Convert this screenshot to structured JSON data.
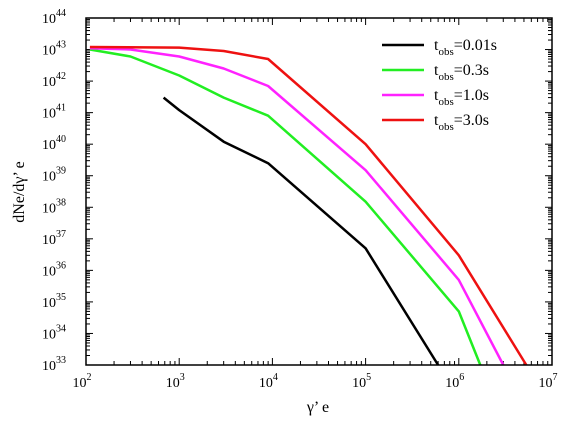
{
  "chart_data": {
    "type": "line",
    "xlabel": "γ’ e",
    "ylabel": "dNe/dγ’ e",
    "xscale": "log",
    "yscale": "log",
    "xlim": [
      100,
      10000000
    ],
    "ylim": [
      1e+33,
      1e+44
    ],
    "x_ticks": [
      {
        "base": "10",
        "exp": "2",
        "value": 100
      },
      {
        "base": "10",
        "exp": "3",
        "value": 1000
      },
      {
        "base": "10",
        "exp": "4",
        "value": 10000
      },
      {
        "base": "10",
        "exp": "5",
        "value": 100000
      },
      {
        "base": "10",
        "exp": "6",
        "value": 1000000
      },
      {
        "base": "10",
        "exp": "7",
        "value": 10000000
      }
    ],
    "y_ticks": [
      {
        "base": "10",
        "exp": "33",
        "value": 1e+33
      },
      {
        "base": "10",
        "exp": "34",
        "value": 1e+34
      },
      {
        "base": "10",
        "exp": "35",
        "value": 1e+35
      },
      {
        "base": "10",
        "exp": "36",
        "value": 1e+36
      },
      {
        "base": "10",
        "exp": "37",
        "value": 1e+37
      },
      {
        "base": "10",
        "exp": "38",
        "value": 1e+38
      },
      {
        "base": "10",
        "exp": "39",
        "value": 1e+39
      },
      {
        "base": "10",
        "exp": "40",
        "value": 1e+40
      },
      {
        "base": "10",
        "exp": "41",
        "value": 1e+41
      },
      {
        "base": "10",
        "exp": "42",
        "value": 1e+42
      },
      {
        "base": "10",
        "exp": "43",
        "value": 1e+43
      },
      {
        "base": "10",
        "exp": "44",
        "value": 1e+44
      }
    ],
    "legend_position": "top-right",
    "grid": false,
    "series": [
      {
        "name": "tobs=0.01s",
        "legend_main": "t",
        "legend_sub": "obs",
        "legend_rest": "=0.01s",
        "color": "#000000",
        "points": [
          [
            680,
            3e+41
          ],
          [
            1000,
            1.2e+41
          ],
          [
            3000,
            1.2e+40
          ],
          [
            9000,
            2.5e+39
          ],
          [
            100000,
            5e+36
          ],
          [
            600000,
            1e+33
          ]
        ]
      },
      {
        "name": "tobs=0.3s",
        "legend_main": "t",
        "legend_sub": "obs",
        "legend_rest": "=0.3s",
        "color": "#22ee22",
        "points": [
          [
            110,
            1e+43
          ],
          [
            300,
            6e+42
          ],
          [
            1000,
            1.5e+42
          ],
          [
            3000,
            3e+41
          ],
          [
            9000,
            8e+40
          ],
          [
            100000,
            1.5e+38
          ],
          [
            1000000,
            5e+34
          ],
          [
            1700000,
            1e+33
          ]
        ]
      },
      {
        "name": "tobs=1.0s",
        "legend_main": "t",
        "legend_sub": "obs",
        "legend_rest": "=1.0s",
        "color": "#ff22ff",
        "points": [
          [
            110,
            1.1e+43
          ],
          [
            300,
            1e+43
          ],
          [
            1000,
            6e+42
          ],
          [
            3000,
            2.5e+42
          ],
          [
            9000,
            7e+41
          ],
          [
            100000,
            1.5e+39
          ],
          [
            1000000,
            5e+35
          ],
          [
            3000000,
            1e+33
          ]
        ]
      },
      {
        "name": "tobs=3.0s",
        "legend_main": "t",
        "legend_sub": "obs",
        "legend_rest": "=3.0s",
        "color": "#ee1111",
        "points": [
          [
            110,
            1.2e+43
          ],
          [
            1000,
            1.15e+43
          ],
          [
            3000,
            9e+42
          ],
          [
            9000,
            5e+42
          ],
          [
            100000,
            1e+40
          ],
          [
            1000000,
            3e+36
          ],
          [
            5300000,
            1e+33
          ]
        ]
      }
    ]
  }
}
